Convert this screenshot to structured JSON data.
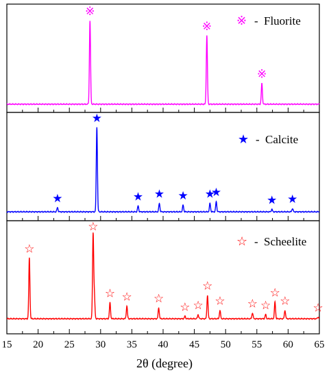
{
  "chart_data": {
    "type": "line",
    "xlabel": "2θ (degree)",
    "xlim": [
      15,
      65
    ],
    "x_ticks": [
      "15",
      "20",
      "25",
      "30",
      "35",
      "40",
      "45",
      "50",
      "55",
      "60",
      "65"
    ],
    "panels": [
      {
        "name": "Fluorite",
        "legend_text": "※ - Fluorite",
        "color": "#ff00ff",
        "marker_glyph": "※",
        "peaks": [
          {
            "x": 28.3,
            "intensity": 1.0
          },
          {
            "x": 47.0,
            "intensity": 0.82
          },
          {
            "x": 55.8,
            "intensity": 0.25
          }
        ]
      },
      {
        "name": "Calcite",
        "legend_text": "★ - Calcite",
        "color": "#0000ff",
        "marker_glyph": "★",
        "peaks": [
          {
            "x": 23.1,
            "intensity": 0.05
          },
          {
            "x": 29.4,
            "intensity": 1.0
          },
          {
            "x": 36.0,
            "intensity": 0.07
          },
          {
            "x": 39.4,
            "intensity": 0.1
          },
          {
            "x": 43.2,
            "intensity": 0.08
          },
          {
            "x": 47.5,
            "intensity": 0.1
          },
          {
            "x": 48.5,
            "intensity": 0.12
          },
          {
            "x": 57.4,
            "intensity": 0.03
          },
          {
            "x": 60.7,
            "intensity": 0.04
          }
        ]
      },
      {
        "name": "Scheelite",
        "legend_text": "☆ - Scheelite",
        "color": "#ff0000",
        "marker_glyph": "☆",
        "peaks": [
          {
            "x": 18.6,
            "intensity": 0.72
          },
          {
            "x": 28.8,
            "intensity": 1.0
          },
          {
            "x": 29.0,
            "intensity": 0.27
          },
          {
            "x": 31.5,
            "intensity": 0.19
          },
          {
            "x": 34.2,
            "intensity": 0.15
          },
          {
            "x": 39.3,
            "intensity": 0.13
          },
          {
            "x": 43.5,
            "intensity": 0.03
          },
          {
            "x": 45.6,
            "intensity": 0.05
          },
          {
            "x": 47.1,
            "intensity": 0.28
          },
          {
            "x": 49.1,
            "intensity": 0.1
          },
          {
            "x": 54.3,
            "intensity": 0.07
          },
          {
            "x": 56.4,
            "intensity": 0.05
          },
          {
            "x": 57.9,
            "intensity": 0.2
          },
          {
            "x": 59.5,
            "intensity": 0.1
          },
          {
            "x": 64.8,
            "intensity": 0.02
          }
        ]
      }
    ]
  }
}
